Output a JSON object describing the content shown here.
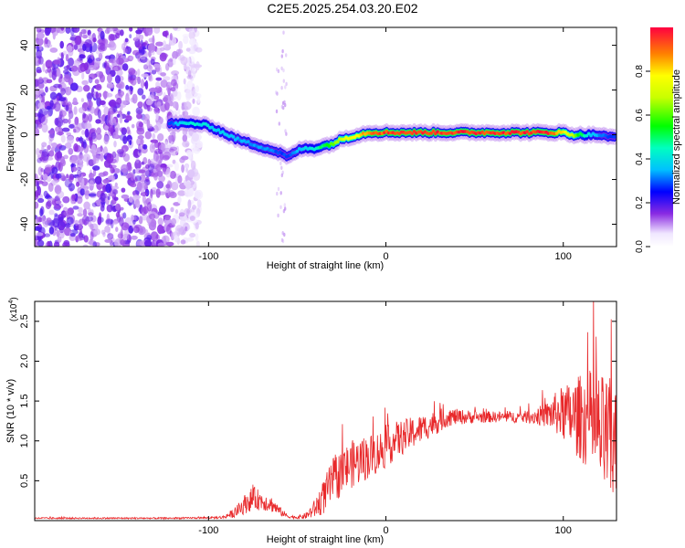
{
  "title": "C2E5.2025.254.03.20.E02",
  "chart_data": [
    {
      "type": "heatmap",
      "xlabel": "Height of straight line (km)",
      "ylabel": "Frequency (Hz)",
      "xlim": [
        -198,
        130
      ],
      "ylim": [
        -50,
        48
      ],
      "xticks": [
        "-100",
        "0",
        "100"
      ],
      "yticks": [
        "-40",
        "-20",
        "0",
        "20",
        "40"
      ],
      "noise_region_x": [
        -198,
        -105
      ],
      "ridge": {
        "x": [
          -122,
          -115,
          -108,
          -100,
          -92,
          -84,
          -76,
          -68,
          -60,
          -55,
          -50,
          -45,
          -40,
          -35,
          -30,
          -25,
          -20,
          -15,
          -10,
          -5,
          0,
          10,
          20,
          30,
          40,
          50,
          60,
          70,
          80,
          90,
          95,
          100,
          105,
          110,
          115,
          120,
          125,
          130
        ],
        "y": [
          5,
          5,
          5,
          4,
          1,
          -2,
          -4,
          -6,
          -8,
          -10,
          -7,
          -6,
          -6,
          -5,
          -4,
          -2,
          -1,
          0,
          1,
          1,
          1,
          1,
          1,
          1,
          1,
          1,
          1,
          1,
          1,
          1,
          1,
          1,
          0,
          0,
          0,
          0,
          -1,
          -1
        ],
        "amp": [
          0.3,
          0.4,
          0.45,
          0.4,
          0.4,
          0.35,
          0.35,
          0.35,
          0.3,
          0.3,
          0.35,
          0.4,
          0.45,
          0.55,
          0.65,
          0.75,
          0.8,
          0.85,
          0.9,
          0.95,
          0.98,
          1.0,
          1.0,
          1.0,
          1.0,
          1.0,
          1.0,
          1.0,
          1.0,
          1.0,
          0.95,
          0.85,
          0.7,
          0.55,
          0.4,
          0.35,
          0.3,
          0.3
        ]
      },
      "colorbar": {
        "label": "Normalized spectral amplitude",
        "ticks": [
          "0.0",
          "0.2",
          "0.4",
          "0.6",
          "0.8"
        ],
        "range": [
          0,
          1
        ]
      }
    },
    {
      "type": "line",
      "xlabel": "Height of straight line (km)",
      "ylabel": "SNR (10 * v/v)",
      "y_exponent_label": "(x10",
      "y_exponent_power": "4",
      "y_exponent_close": ")",
      "xlim": [
        -198,
        130
      ],
      "ylim": [
        0,
        2.75
      ],
      "xticks": [
        "-100",
        "0",
        "100"
      ],
      "yticks": [
        "0.5",
        "1.0",
        "1.5",
        "2.0",
        "2.5"
      ],
      "color": "#e8282a",
      "envelope": {
        "x": [
          -198,
          -120,
          -100,
          -92,
          -85,
          -80,
          -75,
          -70,
          -64,
          -60,
          -55,
          -50,
          -45,
          -40,
          -35,
          -30,
          -25,
          -20,
          -15,
          -10,
          -5,
          0,
          5,
          10,
          15,
          20,
          25,
          30,
          35,
          40,
          50,
          60,
          70,
          80,
          90,
          95,
          100,
          105,
          110,
          115,
          120,
          125,
          130
        ],
        "mean": [
          0.03,
          0.03,
          0.035,
          0.04,
          0.1,
          0.2,
          0.28,
          0.25,
          0.2,
          0.12,
          0.05,
          0.04,
          0.06,
          0.15,
          0.3,
          0.5,
          0.6,
          0.7,
          0.75,
          0.8,
          0.85,
          0.92,
          1.0,
          1.05,
          1.1,
          1.15,
          1.2,
          1.25,
          1.3,
          1.3,
          1.3,
          1.3,
          1.3,
          1.3,
          1.32,
          1.35,
          1.35,
          1.3,
          1.3,
          1.25,
          1.1,
          1.0,
          0.9
        ],
        "noise": [
          0.01,
          0.01,
          0.01,
          0.02,
          0.06,
          0.12,
          0.15,
          0.12,
          0.1,
          0.06,
          0.02,
          0.02,
          0.04,
          0.12,
          0.22,
          0.28,
          0.3,
          0.3,
          0.3,
          0.28,
          0.27,
          0.26,
          0.24,
          0.22,
          0.2,
          0.18,
          0.16,
          0.15,
          0.12,
          0.1,
          0.08,
          0.07,
          0.07,
          0.08,
          0.15,
          0.25,
          0.35,
          0.45,
          0.55,
          0.65,
          0.75,
          0.8,
          0.85
        ]
      }
    }
  ]
}
